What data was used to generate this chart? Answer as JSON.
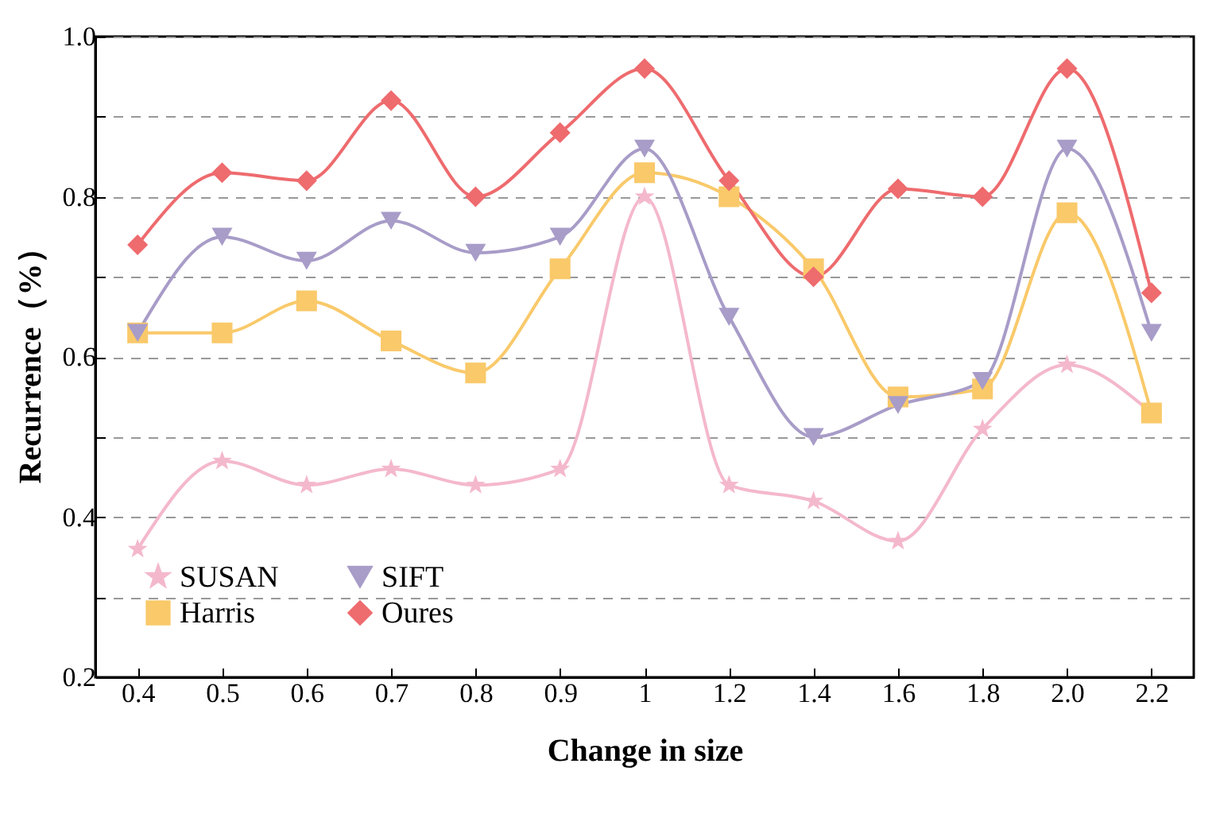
{
  "chart_data": {
    "type": "line",
    "xlabel": "Change in size",
    "ylabel": "Recurrence（%）",
    "categories": [
      "0.4",
      "0.5",
      "0.6",
      "0.7",
      "0.8",
      "0.9",
      "1",
      "1.2",
      "1.4",
      "1.6",
      "1.8",
      "2.0",
      "2.2"
    ],
    "series": [
      {
        "name": "SUSAN",
        "color": "#f4b8cc",
        "marker": "star",
        "values": [
          0.36,
          0.47,
          0.44,
          0.46,
          0.44,
          0.46,
          0.8,
          0.44,
          0.42,
          0.37,
          0.51,
          0.59,
          0.53
        ]
      },
      {
        "name": "Harris",
        "color": "#f9c96a",
        "marker": "square",
        "values": [
          0.63,
          0.63,
          0.67,
          0.62,
          0.58,
          0.71,
          0.83,
          0.8,
          0.71,
          0.55,
          0.56,
          0.78,
          0.53
        ]
      },
      {
        "name": "SIFT",
        "color": "#a89cc8",
        "marker": "triangle-down",
        "values": [
          0.63,
          0.75,
          0.72,
          0.77,
          0.73,
          0.75,
          0.86,
          0.65,
          0.5,
          0.54,
          0.57,
          0.86,
          0.63
        ]
      },
      {
        "name": "Oures",
        "color": "#ee6b6e",
        "marker": "diamond",
        "values": [
          0.74,
          0.83,
          0.82,
          0.92,
          0.8,
          0.88,
          0.96,
          0.82,
          0.7,
          0.81,
          0.8,
          0.96,
          0.68
        ]
      }
    ],
    "ylim": [
      0.2,
      1.0
    ],
    "yticks": [
      0.2,
      {
        "value": 0.3,
        "label": null
      },
      0.4,
      {
        "value": 0.5,
        "label": null
      },
      0.6,
      {
        "value": 0.7,
        "label": null
      },
      0.8,
      {
        "value": 0.9,
        "label": null
      },
      {
        "value": 1.0,
        "label": "1.0"
      }
    ],
    "grid": "y",
    "legend": "bottom left",
    "line_style": "solid"
  }
}
